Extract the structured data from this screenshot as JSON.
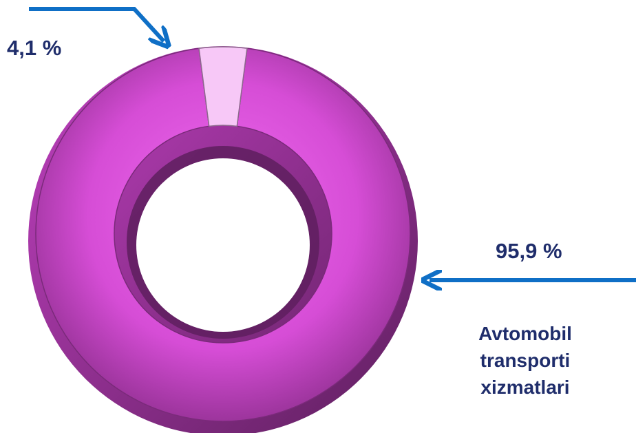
{
  "chart_data": {
    "type": "pie",
    "variant": "donut",
    "title": "",
    "slices": [
      {
        "label": "Avtomobil transporti xizmatlari",
        "value": 95.9,
        "display": "95,9 %",
        "color": "#e055e0"
      },
      {
        "label": "",
        "value": 4.1,
        "display": "4,1 %",
        "color": "#f7c8f7"
      }
    ],
    "category_label_lines": [
      "Avtomobil",
      "transporti",
      "xizmatlari"
    ],
    "arrow_color": "#0f6fc6",
    "label_color": "#1f2d6b"
  }
}
